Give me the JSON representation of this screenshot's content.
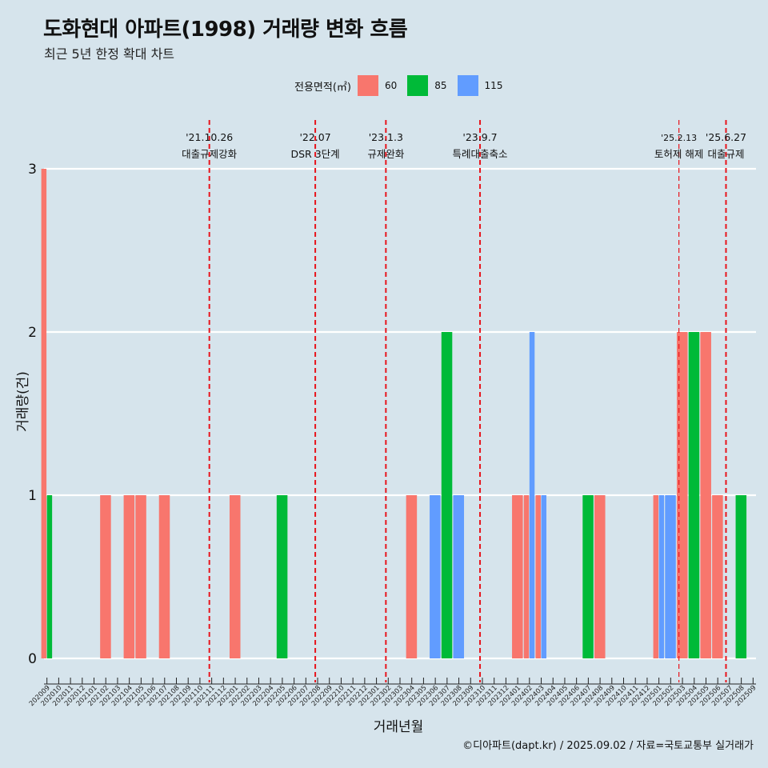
{
  "title": "도화현대 아파트(1998) 거래량 변화 흐름",
  "subtitle": "최근 5년 한정 확대 차트",
  "legend_title": "전용면적(㎡)",
  "caption": "©디아파트(dapt.kr) / 2025.09.02 / 자료=국토교통부 실거래가",
  "colors": {
    "background": "#d6e4ec",
    "grid": "#ffffff",
    "event_line": "#e8141c"
  },
  "chart_data": {
    "type": "bar",
    "xlabel": "거래년월",
    "ylabel": "거래량(건)",
    "ylim": [
      0,
      3
    ],
    "yticks": [
      0,
      1,
      2,
      3
    ],
    "grid": "horizontal",
    "legend_position": "top",
    "categories": [
      "202009",
      "202010",
      "202011",
      "202012",
      "202101",
      "202102",
      "202103",
      "202104",
      "202105",
      "202106",
      "202107",
      "202108",
      "202109",
      "202110",
      "202111",
      "202112",
      "202201",
      "202202",
      "202203",
      "202204",
      "202205",
      "202206",
      "202207",
      "202208",
      "202209",
      "202210",
      "202211",
      "202212",
      "202301",
      "202302",
      "202303",
      "202304",
      "202305",
      "202306",
      "202307",
      "202308",
      "202309",
      "202310",
      "202311",
      "202312",
      "202401",
      "202402",
      "202403",
      "202404",
      "202405",
      "202406",
      "202407",
      "202408",
      "202409",
      "202410",
      "202411",
      "202412",
      "202501",
      "202502",
      "202503",
      "202504",
      "202505",
      "202506",
      "202507",
      "202508",
      "202509"
    ],
    "series": [
      {
        "name": "60",
        "color": "#f8766d",
        "values": [
          3,
          0,
          0,
          0,
          0,
          1,
          0,
          1,
          1,
          0,
          1,
          0,
          0,
          0,
          0,
          0,
          1,
          0,
          0,
          0,
          0,
          0,
          0,
          0,
          0,
          0,
          0,
          0,
          0,
          0,
          0,
          1,
          0,
          0,
          0,
          0,
          0,
          0,
          0,
          0,
          1,
          1,
          1,
          0,
          0,
          0,
          0,
          1,
          0,
          0,
          0,
          0,
          1,
          0,
          2,
          0,
          2,
          1,
          0,
          0,
          0
        ]
      },
      {
        "name": "85",
        "color": "#00ba38",
        "values": [
          1,
          0,
          0,
          0,
          0,
          0,
          0,
          0,
          0,
          0,
          0,
          0,
          0,
          0,
          0,
          0,
          0,
          0,
          0,
          0,
          1,
          0,
          0,
          0,
          0,
          0,
          0,
          0,
          0,
          0,
          0,
          0,
          0,
          0,
          2,
          0,
          0,
          0,
          0,
          0,
          0,
          0,
          0,
          0,
          0,
          0,
          1,
          0,
          0,
          0,
          0,
          0,
          0,
          0,
          0,
          2,
          0,
          0,
          0,
          1,
          0
        ]
      },
      {
        "name": "115",
        "color": "#619cff",
        "values": [
          0,
          0,
          0,
          0,
          0,
          0,
          0,
          0,
          0,
          0,
          0,
          0,
          0,
          0,
          0,
          0,
          0,
          0,
          0,
          0,
          0,
          0,
          0,
          0,
          0,
          0,
          0,
          0,
          0,
          0,
          0,
          0,
          0,
          1,
          0,
          1,
          0,
          0,
          0,
          0,
          0,
          2,
          1,
          0,
          0,
          0,
          0,
          0,
          0,
          0,
          0,
          0,
          1,
          1,
          0,
          0,
          0,
          0,
          0,
          0,
          0
        ]
      }
    ],
    "events": [
      {
        "date": "'21.10.26",
        "label": "대출규제강화",
        "x": 13.8
      },
      {
        "date": "'22.07",
        "label": "DSR 3단계",
        "x": 22.8
      },
      {
        "date": "'23.1.3",
        "label": "규제완화",
        "x": 28.8
      },
      {
        "date": "'23.9.7",
        "label": "특례대출축소",
        "x": 36.8
      },
      {
        "date": "'25.2.13",
        "label": "토허제 해제",
        "x": 53.7
      },
      {
        "date": "'25.6.27",
        "label": "대출규제",
        "x": 57.7
      }
    ]
  }
}
